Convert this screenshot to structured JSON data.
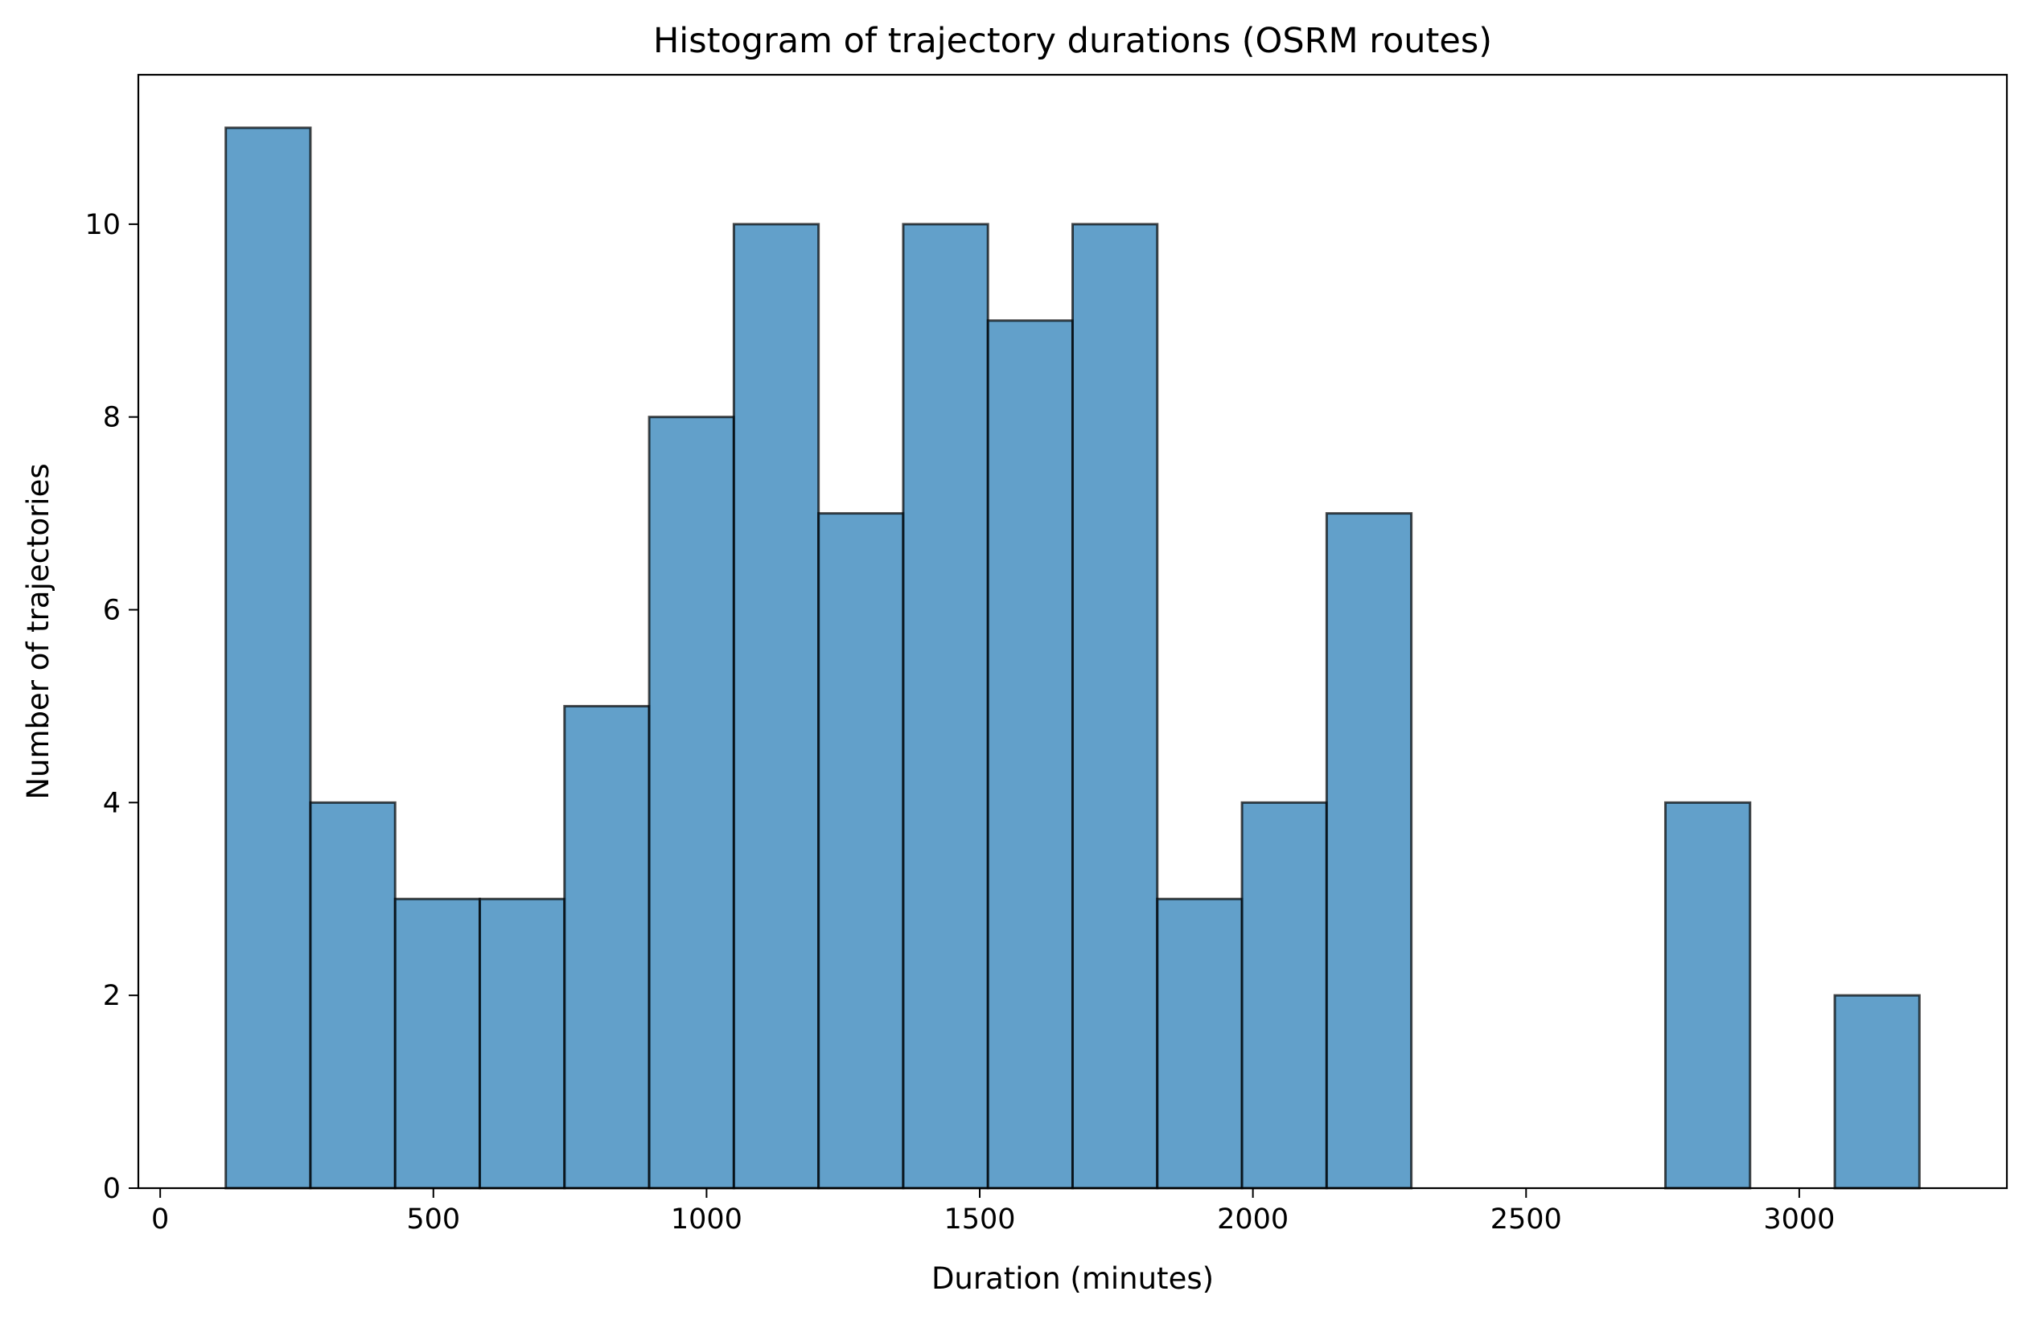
{
  "chart_data": {
    "type": "bar",
    "title": "Histogram of trajectory durations (OSRM routes)",
    "xlabel": "Duration (minutes)",
    "ylabel": "Number of trajectories",
    "bin_edges": [
      120,
      275,
      430,
      585,
      740,
      895,
      1050,
      1205,
      1360,
      1515,
      1670,
      1825,
      1980,
      2135,
      2290,
      2445,
      2600,
      2755,
      2910,
      3065,
      3220
    ],
    "values": [
      11,
      4,
      3,
      3,
      5,
      8,
      10,
      7,
      10,
      9,
      10,
      3,
      4,
      7,
      0,
      0,
      0,
      4,
      0,
      2
    ],
    "xlim": [
      -40,
      3380
    ],
    "ylim": [
      0,
      11.55
    ],
    "xticks": [
      0,
      500,
      1000,
      1500,
      2000,
      2500,
      3000
    ],
    "yticks": [
      0,
      2,
      4,
      6,
      8,
      10
    ],
    "grid": false,
    "colors": {
      "bar_fill": "#1f77b4",
      "bar_edge": "#000000"
    }
  }
}
